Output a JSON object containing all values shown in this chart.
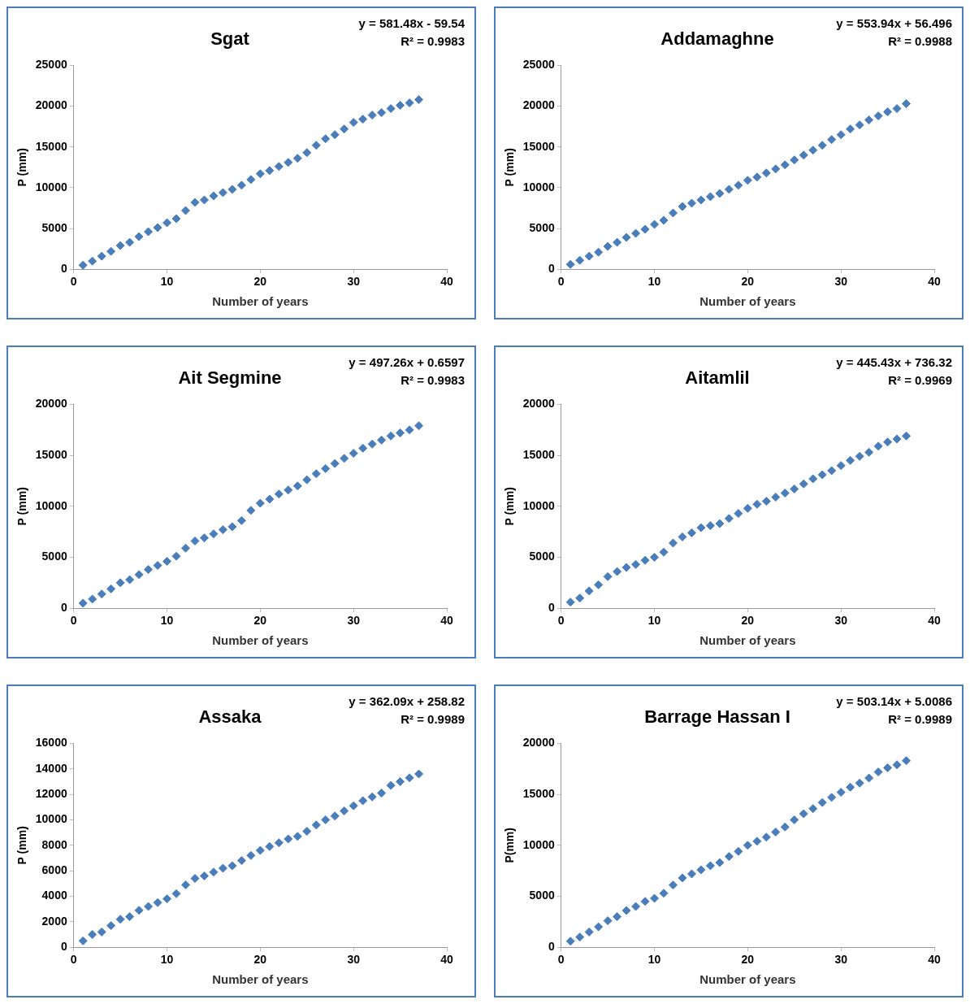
{
  "chart_data": [
    {
      "type": "scatter",
      "title": "Sgat",
      "xlabel": "Number of years",
      "ylabel": "P (mm)",
      "annotations": [
        "y = 581.48x - 59.54",
        "R² = 0.9983"
      ],
      "x": [
        1,
        2,
        3,
        4,
        5,
        6,
        7,
        8,
        9,
        10,
        11,
        12,
        13,
        14,
        15,
        16,
        17,
        18,
        19,
        20,
        21,
        22,
        23,
        24,
        25,
        26,
        27,
        28,
        29,
        30,
        31,
        32,
        33,
        34,
        35,
        36,
        37
      ],
      "xlim": [
        0,
        40
      ],
      "xticks": [
        0,
        10,
        20,
        30,
        40
      ],
      "ylim": [
        0,
        25000
      ],
      "yticks": [
        0,
        5000,
        10000,
        15000,
        20000,
        25000
      ],
      "marker": "diamond",
      "series": [
        {
          "color": "#4a7ebb",
          "values": [
            500,
            1000,
            1600,
            2200,
            2900,
            3300,
            4000,
            4600,
            5100,
            5700,
            6200,
            7200,
            8200,
            8500,
            9000,
            9400,
            9800,
            10300,
            11000,
            11700,
            12100,
            12600,
            13100,
            13600,
            14300,
            15200,
            16000,
            16500,
            17200,
            18000,
            18400,
            18900,
            19200,
            19700,
            20100,
            20400,
            20800
          ]
        }
      ]
    },
    {
      "type": "scatter",
      "title": "Addamaghne",
      "xlabel": "Number of years",
      "ylabel": "P (mm)",
      "annotations": [
        "y = 553.94x + 56.496",
        "R² = 0.9988"
      ],
      "x": [
        1,
        2,
        3,
        4,
        5,
        6,
        7,
        8,
        9,
        10,
        11,
        12,
        13,
        14,
        15,
        16,
        17,
        18,
        19,
        20,
        21,
        22,
        23,
        24,
        25,
        26,
        27,
        28,
        29,
        30,
        31,
        32,
        33,
        34,
        35,
        36,
        37
      ],
      "xlim": [
        0,
        40
      ],
      "xticks": [
        0,
        10,
        20,
        30,
        40
      ],
      "ylim": [
        0,
        25000
      ],
      "yticks": [
        0,
        5000,
        10000,
        15000,
        20000,
        25000
      ],
      "marker": "diamond",
      "series": [
        {
          "color": "#4a7ebb",
          "values": [
            600,
            1100,
            1600,
            2100,
            2800,
            3300,
            3900,
            4400,
            4900,
            5500,
            6000,
            6900,
            7700,
            8100,
            8500,
            8900,
            9300,
            9800,
            10300,
            10900,
            11300,
            11800,
            12300,
            12800,
            13400,
            14000,
            14600,
            15200,
            15900,
            16500,
            17200,
            17700,
            18300,
            18800,
            19300,
            19700,
            20300
          ]
        }
      ]
    },
    {
      "type": "scatter",
      "title": "Ait Segmine",
      "xlabel": "Number of years",
      "ylabel": "P (mm)",
      "annotations": [
        "y = 497.26x + 0.6597",
        "R² = 0.9983"
      ],
      "x": [
        1,
        2,
        3,
        4,
        5,
        6,
        7,
        8,
        9,
        10,
        11,
        12,
        13,
        14,
        15,
        16,
        17,
        18,
        19,
        20,
        21,
        22,
        23,
        24,
        25,
        26,
        27,
        28,
        29,
        30,
        31,
        32,
        33,
        34,
        35,
        36,
        37
      ],
      "xlim": [
        0,
        40
      ],
      "xticks": [
        0,
        10,
        20,
        30,
        40
      ],
      "ylim": [
        0,
        20000
      ],
      "yticks": [
        0,
        5000,
        10000,
        15000,
        20000
      ],
      "marker": "diamond",
      "series": [
        {
          "color": "#4a7ebb",
          "values": [
            500,
            900,
            1400,
            1900,
            2500,
            2800,
            3300,
            3800,
            4200,
            4600,
            5100,
            5900,
            6600,
            6900,
            7300,
            7700,
            8000,
            8600,
            9600,
            10300,
            10700,
            11200,
            11600,
            12000,
            12600,
            13200,
            13700,
            14200,
            14700,
            15200,
            15700,
            16100,
            16500,
            16900,
            17200,
            17500,
            17900
          ]
        }
      ]
    },
    {
      "type": "scatter",
      "title": "Aitamlil",
      "xlabel": "Number of years",
      "ylabel": "P (mm)",
      "annotations": [
        "y = 445.43x + 736.32",
        "R² = 0.9969"
      ],
      "x": [
        1,
        2,
        3,
        4,
        5,
        6,
        7,
        8,
        9,
        10,
        11,
        12,
        13,
        14,
        15,
        16,
        17,
        18,
        19,
        20,
        21,
        22,
        23,
        24,
        25,
        26,
        27,
        28,
        29,
        30,
        31,
        32,
        33,
        34,
        35,
        36,
        37
      ],
      "xlim": [
        0,
        40
      ],
      "xticks": [
        0,
        10,
        20,
        30,
        40
      ],
      "ylim": [
        0,
        20000
      ],
      "yticks": [
        0,
        5000,
        10000,
        15000,
        20000
      ],
      "marker": "diamond",
      "series": [
        {
          "color": "#4a7ebb",
          "values": [
            600,
            1000,
            1700,
            2300,
            3100,
            3600,
            4000,
            4300,
            4700,
            5000,
            5500,
            6400,
            7000,
            7400,
            7900,
            8100,
            8300,
            8800,
            9300,
            9800,
            10200,
            10500,
            10900,
            11300,
            11700,
            12200,
            12700,
            13100,
            13500,
            14000,
            14500,
            14900,
            15300,
            15900,
            16300,
            16600,
            16900
          ]
        }
      ]
    },
    {
      "type": "scatter",
      "title": "Assaka",
      "xlabel": "Number of years",
      "ylabel": "P (mm)",
      "annotations": [
        "y = 362.09x + 258.82",
        "R² = 0.9989"
      ],
      "x": [
        1,
        2,
        3,
        4,
        5,
        6,
        7,
        8,
        9,
        10,
        11,
        12,
        13,
        14,
        15,
        16,
        17,
        18,
        19,
        20,
        21,
        22,
        23,
        24,
        25,
        26,
        27,
        28,
        29,
        30,
        31,
        32,
        33,
        34,
        35,
        36,
        37
      ],
      "xlim": [
        0,
        40
      ],
      "xticks": [
        0,
        10,
        20,
        30,
        40
      ],
      "ylim": [
        0,
        16000
      ],
      "yticks": [
        0,
        2000,
        4000,
        6000,
        8000,
        10000,
        12000,
        14000,
        16000
      ],
      "marker": "diamond",
      "series": [
        {
          "color": "#4a7ebb",
          "values": [
            500,
            1000,
            1200,
            1700,
            2200,
            2400,
            2900,
            3200,
            3500,
            3800,
            4200,
            4900,
            5400,
            5600,
            5900,
            6200,
            6400,
            6800,
            7200,
            7600,
            7900,
            8200,
            8500,
            8700,
            9100,
            9600,
            10000,
            10300,
            10700,
            11100,
            11500,
            11800,
            12100,
            12700,
            13000,
            13300,
            13600
          ]
        }
      ]
    },
    {
      "type": "scatter",
      "title": "Barrage Hassan I",
      "xlabel": "Number of years",
      "ylabel": "P(mm)",
      "annotations": [
        "y = 503.14x + 5.0086",
        "R² = 0.9989"
      ],
      "x": [
        1,
        2,
        3,
        4,
        5,
        6,
        7,
        8,
        9,
        10,
        11,
        12,
        13,
        14,
        15,
        16,
        17,
        18,
        19,
        20,
        21,
        22,
        23,
        24,
        25,
        26,
        27,
        28,
        29,
        30,
        31,
        32,
        33,
        34,
        35,
        36,
        37
      ],
      "xlim": [
        0,
        40
      ],
      "xticks": [
        0,
        10,
        20,
        30,
        40
      ],
      "ylim": [
        0,
        20000
      ],
      "yticks": [
        0,
        5000,
        10000,
        15000,
        20000
      ],
      "marker": "diamond",
      "series": [
        {
          "color": "#4a7ebb",
          "values": [
            600,
            1000,
            1500,
            2000,
            2600,
            3000,
            3600,
            4000,
            4500,
            4800,
            5300,
            6100,
            6800,
            7200,
            7600,
            8000,
            8300,
            8900,
            9400,
            10000,
            10400,
            10800,
            11300,
            11800,
            12500,
            13100,
            13600,
            14200,
            14700,
            15200,
            15700,
            16100,
            16600,
            17200,
            17600,
            17900,
            18300
          ]
        }
      ]
    }
  ]
}
